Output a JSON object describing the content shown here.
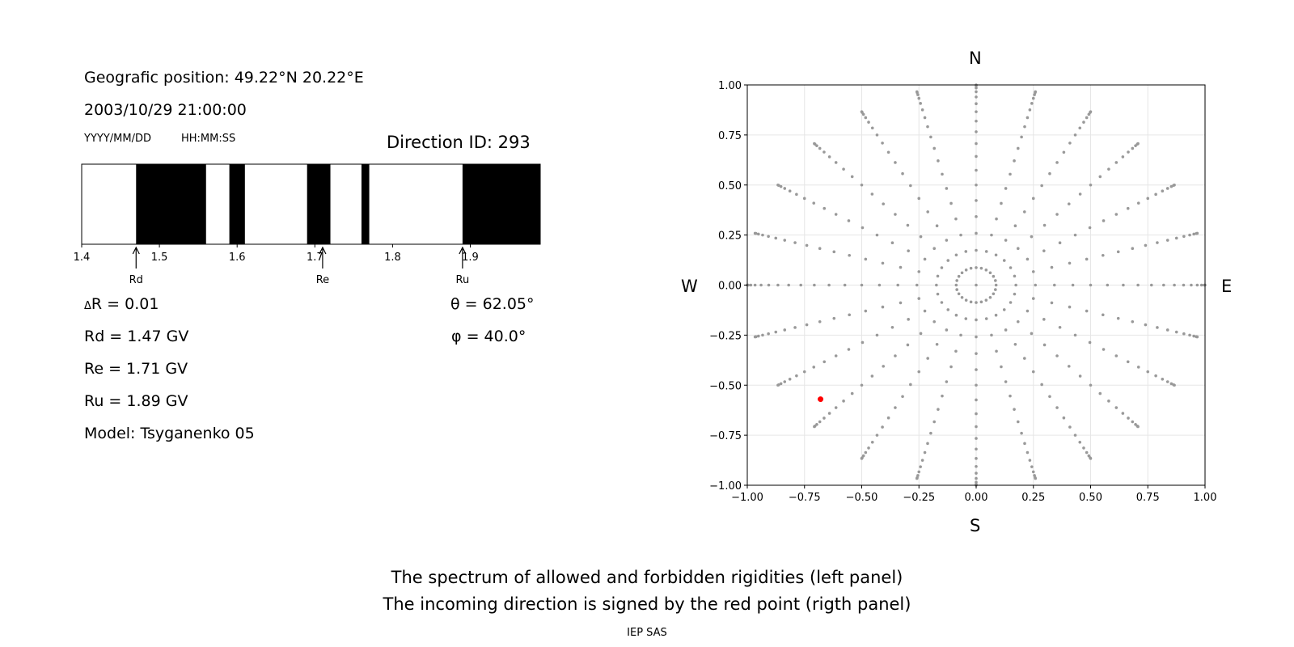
{
  "left_panel": {
    "position_line": "Geografic position: 49.22°N 20.22°E",
    "datetime_line": "2003/10/29 21:00:00",
    "date_format": "YYYY/MM/DD",
    "time_format": "HH:MM:SS",
    "direction_label": "Direction ID: 293",
    "delta_r": "R = 0.01",
    "delta_symbol": "Δ",
    "rd": "Rd = 1.47 GV",
    "re": "Re = 1.71 GV",
    "ru": "Ru = 1.89 GV",
    "model": "Model: Tsyganenko 05",
    "theta": "θ = 62.05°",
    "phi": "φ = 40.0°"
  },
  "right_panel": {
    "north": "N",
    "south": "S",
    "west": "W",
    "east": "E"
  },
  "footer": {
    "line1": "The spectrum of allowed and forbidden rigidities (left panel)",
    "line2": "The incoming direction is signed by the red point (rigth panel)",
    "credit": "IEP SAS"
  },
  "colors": {
    "forbidden": "#000000",
    "allowed": "#ffffff",
    "grid_point": "#999999",
    "highlight": "#ff0000"
  },
  "chart_data": [
    {
      "type": "bar",
      "xlim": [
        1.4,
        1.99
      ],
      "xticks": [
        "1.4",
        "1.5",
        "1.6",
        "1.7",
        "1.8",
        "1.9"
      ],
      "forbidden_bands": [
        [
          1.47,
          1.56
        ],
        [
          1.59,
          1.61
        ],
        [
          1.69,
          1.72
        ],
        [
          1.76,
          1.77
        ],
        [
          1.89,
          1.99
        ]
      ],
      "markers": [
        {
          "label": "Rd",
          "value": 1.47
        },
        {
          "label": "Re",
          "value": 1.71
        },
        {
          "label": "Ru",
          "value": 1.89
        }
      ]
    },
    {
      "type": "scatter",
      "xlim": [
        -1,
        1
      ],
      "ylim": [
        -1,
        1
      ],
      "xticks": [
        "−1.00",
        "−0.75",
        "−0.50",
        "−0.25",
        "0.00",
        "0.25",
        "0.50",
        "0.75",
        "1.00"
      ],
      "yticks": [
        "−1.00",
        "−0.75",
        "−0.50",
        "−0.25",
        "0.00",
        "0.25",
        "0.50",
        "0.75",
        "1.00"
      ],
      "grid": true,
      "zenith_step_deg": 5,
      "azimuth_step_deg": 15,
      "highlight_point": {
        "theta_deg": 62.05,
        "phi_deg": 40.0,
        "x": -0.68,
        "y": -0.57
      }
    }
  ]
}
